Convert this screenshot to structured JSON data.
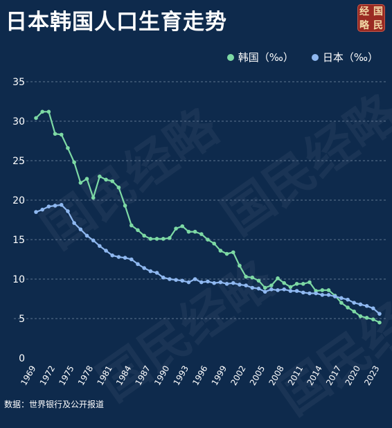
{
  "title": "日本韩国人口生育走势",
  "logo": {
    "chars": [
      "国",
      "经",
      "民",
      "略"
    ]
  },
  "source": "数据：世界银行及公开报道",
  "watermark": "国民经略",
  "colors": {
    "korea": "#7dd9a4",
    "japan": "#8fb8f0",
    "background": "#0e2a4c",
    "grid": "#9fb3c9"
  },
  "chart_data": {
    "type": "line",
    "x": [
      1969,
      1970,
      1971,
      1972,
      1973,
      1974,
      1975,
      1976,
      1977,
      1978,
      1979,
      1980,
      1981,
      1982,
      1983,
      1984,
      1985,
      1986,
      1987,
      1988,
      1989,
      1990,
      1991,
      1992,
      1993,
      1994,
      1995,
      1996,
      1997,
      1998,
      1999,
      2000,
      2001,
      2002,
      2003,
      2004,
      2005,
      2006,
      2007,
      2008,
      2009,
      2010,
      2011,
      2012,
      2013,
      2014,
      2015,
      2016,
      2017,
      2018,
      2019,
      2020,
      2021,
      2022,
      2023
    ],
    "xticks": [
      1969,
      1972,
      1975,
      1978,
      1981,
      1984,
      1987,
      1990,
      1993,
      1996,
      1999,
      2002,
      2005,
      2008,
      2011,
      2014,
      2017,
      2020,
      2023
    ],
    "yticks": [
      0,
      5,
      10,
      15,
      20,
      25,
      30,
      35
    ],
    "ylim": [
      0,
      35
    ],
    "series": [
      {
        "name": "韩国（‰）",
        "color": "#7dd9a4",
        "values": [
          30.4,
          31.2,
          31.2,
          28.4,
          28.3,
          26.6,
          24.8,
          22.2,
          22.7,
          20.3,
          23.0,
          22.6,
          22.4,
          21.6,
          19.3,
          16.8,
          16.2,
          15.5,
          15.1,
          15.1,
          15.1,
          15.2,
          16.4,
          16.7,
          16.0,
          16.0,
          15.7,
          15.0,
          14.5,
          13.6,
          13.2,
          13.4,
          11.7,
          10.3,
          10.2,
          9.8,
          8.9,
          9.2,
          10.1,
          9.5,
          9.0,
          9.4,
          9.4,
          9.6,
          8.5,
          8.6,
          8.6,
          7.9,
          7.0,
          6.4,
          5.9,
          5.3,
          5.1,
          4.9,
          4.5
        ]
      },
      {
        "name": "日本（‰）",
        "color": "#8fb8f0",
        "values": [
          18.5,
          18.8,
          19.2,
          19.3,
          19.4,
          18.6,
          17.1,
          16.3,
          15.5,
          14.9,
          14.2,
          13.6,
          13.0,
          12.8,
          12.7,
          12.5,
          11.9,
          11.4,
          11.0,
          10.8,
          10.2,
          10.0,
          9.9,
          9.8,
          9.6,
          10.0,
          9.6,
          9.7,
          9.5,
          9.6,
          9.4,
          9.5,
          9.3,
          9.2,
          8.9,
          8.8,
          8.4,
          8.7,
          8.6,
          8.7,
          8.5,
          8.5,
          8.3,
          8.2,
          8.2,
          8.0,
          8.0,
          7.8,
          7.6,
          7.4,
          7.0,
          6.8,
          6.6,
          6.3,
          5.6
        ]
      }
    ]
  }
}
